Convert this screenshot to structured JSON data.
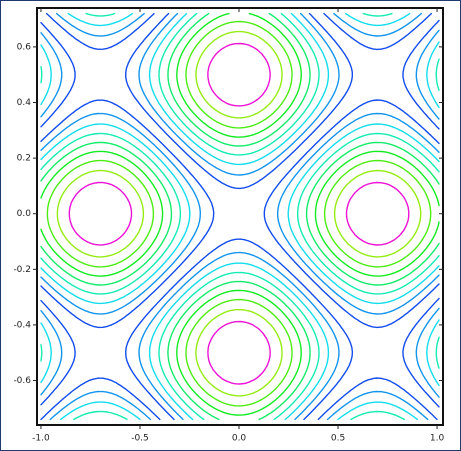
{
  "chart_data": {
    "type": "streamplot",
    "xlim": [
      -1.02,
      1.03
    ],
    "ylim": [
      -0.76,
      0.74
    ],
    "xticks": [
      {
        "value": -1,
        "label": "-1.0"
      },
      -0.5,
      {
        "value": 0,
        "label": "0.0"
      },
      0.5,
      {
        "value": 1,
        "label": "1.0"
      }
    ],
    "yticks": [
      -0.6,
      -0.4,
      -0.2,
      {
        "value": 0,
        "label": "0.0"
      },
      0.2,
      0.4,
      0.6
    ]
  }
}
